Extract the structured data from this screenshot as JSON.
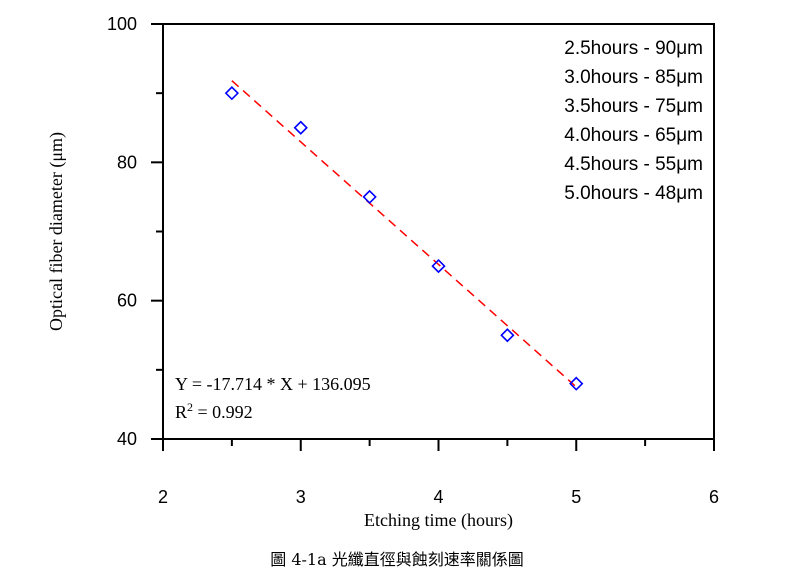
{
  "chart_data": {
    "type": "scatter",
    "xlabel": "Etching time (hours)",
    "ylabel": "Optical fiber diameter (μm)",
    "xlim": [
      2,
      6
    ],
    "ylim": [
      40,
      100
    ],
    "x_ticks": [
      2,
      3,
      4,
      5,
      6
    ],
    "y_ticks": [
      40,
      60,
      80,
      100
    ],
    "grid": false,
    "series": [
      {
        "marker": "diamond-open",
        "color": "#0000ff",
        "x": [
          2.5,
          3.0,
          3.5,
          4.0,
          4.5,
          5.0
        ],
        "y": [
          90,
          85,
          75,
          65,
          55,
          48
        ]
      }
    ],
    "fit": {
      "slope": -17.714,
      "intercept": 136.095,
      "x_range": [
        2.5,
        5.0
      ],
      "color": "#ff0000",
      "style": "dashed",
      "equation": "Y = -17.714 * X + 136.095",
      "r2_label": "R",
      "r2_sup": "2",
      "r2_value": " = 0.992"
    },
    "legend_placement": "top-right",
    "legend_lines": [
      "2.5hours - 90μm",
      "3.0hours - 85μm",
      "3.5hours - 75μm",
      "4.0hours - 65μm",
      "4.5hours - 55μm",
      "5.0hours - 48μm"
    ]
  },
  "caption": "圖 4-1a 光纖直徑與蝕刻速率關係圖"
}
